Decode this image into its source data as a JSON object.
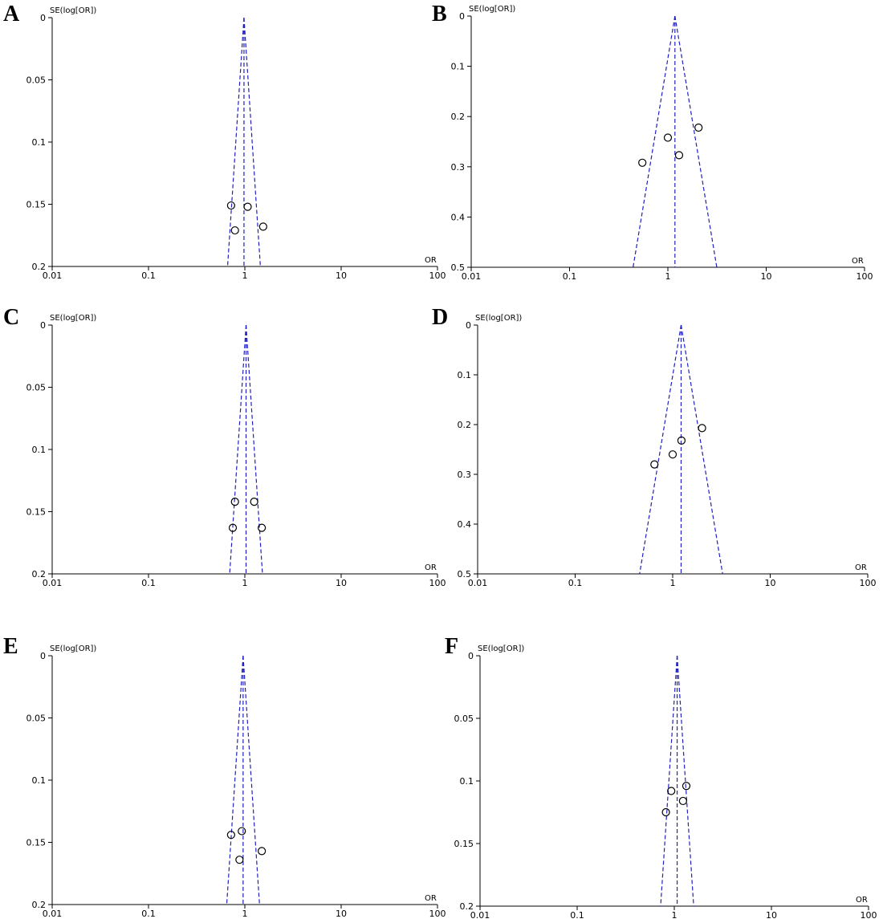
{
  "chart_data": [
    {
      "panel": "A",
      "type": "scatter",
      "subtype": "funnel",
      "ylabel": "SE(log[OR])",
      "xlabel": "OR",
      "xscale": "log",
      "xticks": [
        "0.01",
        "0.1",
        "1",
        "10",
        "100"
      ],
      "yticks": [
        "0",
        "0.05",
        "0.1",
        "0.15",
        "0.2"
      ],
      "xlim": [
        0.01,
        100
      ],
      "ylim": [
        0,
        0.2
      ],
      "y_inverted": true,
      "pooled_or": 0.98,
      "points": [
        {
          "x": 0.72,
          "y": 0.151
        },
        {
          "x": 1.07,
          "y": 0.152
        },
        {
          "x": 0.79,
          "y": 0.171
        },
        {
          "x": 1.55,
          "y": 0.168
        }
      ]
    },
    {
      "panel": "B",
      "type": "scatter",
      "subtype": "funnel",
      "ylabel": "SE(log[OR])",
      "xlabel": "OR",
      "xscale": "log",
      "xticks": [
        "0.01",
        "0.1",
        "1",
        "10",
        "100"
      ],
      "yticks": [
        "0",
        "0.1",
        "0.2",
        "0.3",
        "0.4",
        "0.5"
      ],
      "xlim": [
        0.01,
        100
      ],
      "ylim": [
        0,
        0.5
      ],
      "y_inverted": true,
      "pooled_or": 1.18,
      "points": [
        {
          "x": 2.05,
          "y": 0.222
        },
        {
          "x": 1.0,
          "y": 0.242
        },
        {
          "x": 1.3,
          "y": 0.277
        },
        {
          "x": 0.55,
          "y": 0.292
        }
      ]
    },
    {
      "panel": "C",
      "type": "scatter",
      "subtype": "funnel",
      "ylabel": "SE(log[OR])",
      "xlabel": "OR",
      "xscale": "log",
      "xticks": [
        "0.01",
        "0.1",
        "1",
        "10",
        "100"
      ],
      "yticks": [
        "0",
        "0.05",
        "0.1",
        "0.15",
        "0.2"
      ],
      "xlim": [
        0.01,
        100
      ],
      "ylim": [
        0,
        0.2
      ],
      "y_inverted": true,
      "pooled_or": 1.03,
      "points": [
        {
          "x": 0.79,
          "y": 0.142
        },
        {
          "x": 1.25,
          "y": 0.142
        },
        {
          "x": 0.75,
          "y": 0.163
        },
        {
          "x": 1.5,
          "y": 0.163
        }
      ]
    },
    {
      "panel": "D",
      "type": "scatter",
      "subtype": "funnel",
      "ylabel": "SE(log[OR])",
      "xlabel": "OR",
      "xscale": "log",
      "xticks": [
        "0.01",
        "0.1",
        "1",
        "10",
        "100"
      ],
      "yticks": [
        "0",
        "0.1",
        "0.2",
        "0.3",
        "0.4",
        "0.5"
      ],
      "xlim": [
        0.01,
        100
      ],
      "ylim": [
        0,
        0.5
      ],
      "y_inverted": true,
      "pooled_or": 1.22,
      "points": [
        {
          "x": 2.0,
          "y": 0.207
        },
        {
          "x": 1.23,
          "y": 0.232
        },
        {
          "x": 1.0,
          "y": 0.26
        },
        {
          "x": 0.65,
          "y": 0.28
        }
      ]
    },
    {
      "panel": "E",
      "type": "scatter",
      "subtype": "funnel",
      "ylabel": "SE(log[OR])",
      "xlabel": "OR",
      "xscale": "log",
      "xticks": [
        "0.01",
        "0.1",
        "1",
        "10",
        "100"
      ],
      "yticks": [
        "0",
        "0.05",
        "0.1",
        "0.15",
        "0.2"
      ],
      "xlim": [
        0.01,
        100
      ],
      "ylim": [
        0,
        0.2
      ],
      "y_inverted": true,
      "pooled_or": 0.96,
      "points": [
        {
          "x": 0.72,
          "y": 0.144
        },
        {
          "x": 0.93,
          "y": 0.141
        },
        {
          "x": 0.88,
          "y": 0.164
        },
        {
          "x": 1.5,
          "y": 0.157
        }
      ]
    },
    {
      "panel": "F",
      "type": "scatter",
      "subtype": "funnel",
      "ylabel": "SE(log[OR])",
      "xlabel": "OR",
      "xscale": "log",
      "xticks": [
        "0.01",
        "0.1",
        "1",
        "10",
        "100"
      ],
      "yticks": [
        "0",
        "0.05",
        "0.1",
        "0.15",
        "0.2"
      ],
      "xlim": [
        0.01,
        100
      ],
      "ylim": [
        0,
        0.2
      ],
      "y_inverted": true,
      "pooled_or": 1.07,
      "points": [
        {
          "x": 1.33,
          "y": 0.104
        },
        {
          "x": 0.93,
          "y": 0.108
        },
        {
          "x": 1.23,
          "y": 0.116
        },
        {
          "x": 0.82,
          "y": 0.125
        }
      ]
    }
  ],
  "colors": {
    "funnel": "#2020c0",
    "axis": "#000000",
    "points": "#000000"
  }
}
